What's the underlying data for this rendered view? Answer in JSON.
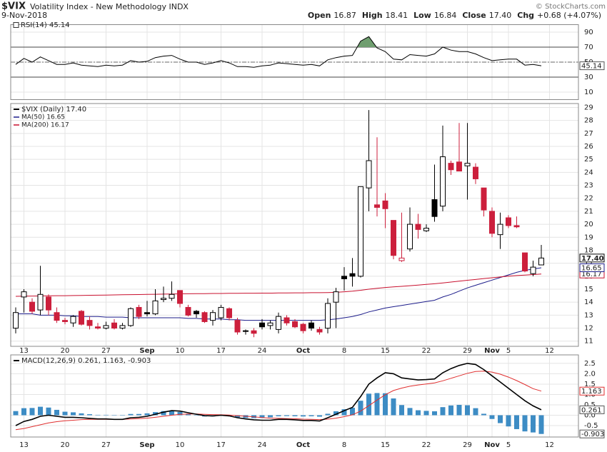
{
  "header": {
    "symbol": "$VIX",
    "name": "Volatility Index - New Methodology  INDX",
    "date": "9-Nov-2018",
    "credit": "© StockCharts.com",
    "quote": [
      {
        "label": "Open",
        "value": "16.87"
      },
      {
        "label": "High",
        "value": "18.41"
      },
      {
        "label": "Low",
        "value": "16.84"
      },
      {
        "label": "Close",
        "value": "17.40"
      },
      {
        "label": "Chg",
        "value": "+0.68 (+4.07%)"
      }
    ]
  },
  "chart_data": [
    {
      "type": "line",
      "legend": "RSI(14) 45.14",
      "ylim": [
        0,
        100
      ],
      "yticks": [
        10,
        30,
        50,
        70,
        90
      ],
      "overbought": 70,
      "oversold": 30,
      "midline": 50,
      "fill_color": "#6f9e6f",
      "series": [
        {
          "color": "#000000",
          "last_label": "45.14",
          "values": [
            47,
            55,
            50,
            57,
            52,
            47,
            47,
            49,
            46,
            45,
            44,
            46,
            45,
            46,
            52,
            50,
            51,
            56,
            58,
            59,
            54,
            50,
            50,
            47,
            49,
            52,
            49,
            44,
            44,
            43,
            45,
            46,
            49,
            48,
            47,
            46,
            47,
            45,
            53,
            56,
            58,
            59,
            78,
            84,
            69,
            64,
            54,
            53,
            60,
            59,
            58,
            61,
            70,
            66,
            64,
            64,
            61,
            56,
            52,
            53,
            54,
            54,
            46,
            47,
            45.14,
            null
          ]
        }
      ]
    },
    {
      "type": "candlestick",
      "name": "$VIX (Daily) 17.40",
      "last_label": "17.40",
      "up_color": "#000000",
      "down_color": "#cc1f3c",
      "grid": true,
      "ylim": [
        10.6,
        29.3
      ],
      "yticks": [
        11,
        12,
        13,
        14,
        15,
        16,
        17,
        18,
        19,
        20,
        21,
        22,
        23,
        24,
        25,
        26,
        27,
        28,
        29
      ],
      "categories": [
        null,
        "13",
        null,
        null,
        null,
        null,
        "20",
        null,
        null,
        null,
        null,
        "27",
        null,
        null,
        null,
        null,
        "Sep",
        null,
        null,
        null,
        "10",
        null,
        null,
        null,
        null,
        "17",
        null,
        null,
        null,
        null,
        "24",
        null,
        null,
        null,
        null,
        "Oct",
        null,
        null,
        null,
        null,
        "8",
        null,
        null,
        null,
        null,
        "15",
        null,
        null,
        null,
        null,
        "22",
        null,
        null,
        null,
        null,
        "29",
        null,
        null,
        "Nov",
        null,
        "5",
        null,
        null,
        null,
        null,
        "12"
      ],
      "open": [
        12.0,
        14.4,
        14.0,
        13.4,
        14.4,
        13.2,
        12.6,
        12.4,
        13.3,
        12.6,
        12.1,
        12.0,
        12.4,
        12.0,
        12.2,
        13.6,
        13.2,
        13.1,
        14.2,
        14.3,
        14.9,
        13.6,
        13.3,
        13.2,
        12.6,
        12.8,
        13.5,
        12.6,
        11.8,
        11.8,
        12.4,
        12.2,
        11.9,
        12.8,
        12.5,
        12.3,
        12.4,
        11.9,
        12.0,
        14.0,
        16.0,
        16.2,
        16.0,
        22.8,
        21.5,
        21.8,
        20.3,
        17.2,
        18.1,
        20.0,
        19.5,
        21.9,
        21.4,
        24.7,
        24.8,
        24.5,
        24.4,
        22.8,
        21.0,
        19.2,
        20.5,
        19.9,
        17.8,
        16.2,
        16.87,
        null
      ],
      "high": [
        13.6,
        15.0,
        14.3,
        16.8,
        14.6,
        13.6,
        12.8,
        13.0,
        13.4,
        12.9,
        12.4,
        12.5,
        12.7,
        12.4,
        13.6,
        13.8,
        14.1,
        15.0,
        15.2,
        15.6,
        14.9,
        13.8,
        13.4,
        13.3,
        13.4,
        13.8,
        13.6,
        12.8,
        11.9,
        12.0,
        12.7,
        12.6,
        13.2,
        13.0,
        12.7,
        12.4,
        12.6,
        12.1,
        14.3,
        15.1,
        16.7,
        17.4,
        22.9,
        28.8,
        26.7,
        22.4,
        20.3,
        20.9,
        21.3,
        20.8,
        20.0,
        24.6,
        27.6,
        24.9,
        27.8,
        27.8,
        24.7,
        22.8,
        21.3,
        20.9,
        20.7,
        20.6,
        17.8,
        17.2,
        18.41,
        null
      ],
      "low": [
        11.6,
        13.2,
        13.1,
        13.0,
        13.0,
        12.4,
        12.3,
        12.1,
        12.2,
        11.9,
        11.9,
        11.9,
        11.9,
        11.9,
        12.1,
        12.7,
        12.9,
        13.0,
        14.0,
        14.1,
        13.6,
        12.9,
        12.8,
        12.4,
        12.2,
        12.6,
        12.6,
        11.5,
        11.5,
        11.3,
        11.9,
        11.9,
        11.6,
        12.2,
        12.0,
        11.6,
        11.8,
        11.5,
        11.6,
        12.0,
        14.9,
        15.2,
        15.9,
        21.0,
        20.6,
        19.7,
        17.3,
        17.1,
        17.9,
        18.9,
        19.4,
        20.2,
        21.0,
        23.8,
        24.1,
        21.9,
        23.1,
        20.6,
        19.0,
        18.1,
        19.7,
        19.7,
        16.3,
        16.0,
        16.84,
        null
      ],
      "close": [
        13.2,
        14.8,
        13.3,
        14.6,
        13.4,
        12.6,
        12.5,
        12.9,
        12.3,
        12.2,
        12.0,
        12.2,
        12.0,
        12.2,
        13.5,
        12.9,
        13.1,
        14.1,
        14.3,
        14.6,
        13.9,
        13.0,
        13.1,
        12.5,
        13.2,
        13.6,
        12.8,
        11.7,
        11.8,
        11.6,
        12.1,
        12.4,
        12.9,
        12.4,
        12.1,
        11.8,
        12.0,
        11.7,
        13.9,
        14.8,
        15.8,
        16.0,
        22.9,
        24.9,
        21.3,
        21.2,
        17.6,
        17.4,
        20.0,
        19.6,
        19.7,
        20.6,
        25.2,
        24.2,
        24.1,
        24.7,
        23.5,
        21.1,
        19.3,
        20.0,
        19.9,
        19.8,
        16.4,
        16.7,
        17.4,
        null
      ],
      "overlays": [
        {
          "name": "MA(50) 16.65",
          "last_label": "16.65",
          "color": "#1c1c8a",
          "values": [
            13.1,
            13.1,
            13.1,
            13.0,
            13.0,
            13.0,
            12.95,
            12.95,
            12.9,
            12.9,
            12.9,
            12.85,
            12.85,
            12.85,
            12.8,
            12.8,
            12.8,
            12.8,
            12.8,
            12.8,
            12.8,
            12.75,
            12.75,
            12.7,
            12.7,
            12.7,
            12.65,
            12.65,
            12.6,
            12.6,
            12.6,
            12.6,
            12.6,
            12.6,
            12.6,
            12.6,
            12.6,
            12.6,
            12.65,
            12.7,
            12.8,
            12.9,
            13.05,
            13.25,
            13.4,
            13.55,
            13.65,
            13.75,
            13.85,
            13.95,
            14.05,
            14.15,
            14.4,
            14.6,
            14.85,
            15.1,
            15.3,
            15.5,
            15.7,
            15.9,
            16.1,
            16.3,
            16.45,
            16.55,
            16.65,
            null
          ]
        },
        {
          "name": "MA(200) 16.17",
          "last_label": "16.17",
          "color": "#c8102e",
          "values": [
            14.45,
            14.46,
            14.47,
            14.48,
            14.49,
            14.5,
            14.5,
            14.51,
            14.52,
            14.53,
            14.54,
            14.55,
            14.56,
            14.57,
            14.58,
            14.59,
            14.6,
            14.61,
            14.62,
            14.63,
            14.64,
            14.65,
            14.66,
            14.66,
            14.67,
            14.67,
            14.68,
            14.68,
            14.69,
            14.69,
            14.7,
            14.7,
            14.71,
            14.71,
            14.72,
            14.72,
            14.73,
            14.73,
            14.74,
            14.76,
            14.8,
            14.85,
            14.92,
            15.0,
            15.07,
            15.13,
            15.18,
            15.22,
            15.27,
            15.32,
            15.37,
            15.42,
            15.48,
            15.55,
            15.62,
            15.69,
            15.75,
            15.82,
            15.88,
            15.94,
            16.0,
            16.05,
            16.09,
            16.13,
            16.17,
            null
          ]
        }
      ]
    },
    {
      "type": "macd",
      "legend": "MACD(12,26,9) 0.261, 1.163, -0.903",
      "ylim": [
        -1.05,
        2.91
      ],
      "yticks": [
        2.5,
        {
          "value": 2,
          "label": "2.0"
        },
        1.5,
        {
          "value": 1,
          "label": "1.0"
        },
        0.5,
        {
          "value": 0,
          "label": "0.0"
        },
        -0.5
      ],
      "macd": {
        "color": "#000000",
        "last_label": "0.261",
        "values": [
          -0.5,
          -0.3,
          -0.2,
          -0.05,
          0.0,
          -0.05,
          -0.1,
          -0.1,
          -0.12,
          -0.15,
          -0.18,
          -0.18,
          -0.2,
          -0.2,
          -0.12,
          -0.1,
          -0.05,
          0.05,
          0.15,
          0.22,
          0.2,
          0.12,
          0.05,
          -0.02,
          -0.03,
          0.0,
          -0.03,
          -0.12,
          -0.18,
          -0.22,
          -0.24,
          -0.24,
          -0.2,
          -0.2,
          -0.22,
          -0.25,
          -0.25,
          -0.28,
          -0.12,
          0.05,
          0.22,
          0.38,
          0.9,
          1.5,
          1.8,
          2.05,
          2.0,
          1.8,
          1.75,
          1.7,
          1.72,
          1.75,
          2.05,
          2.25,
          2.4,
          2.5,
          2.45,
          2.2,
          1.9,
          1.6,
          1.3,
          1.0,
          0.7,
          0.45,
          0.261,
          null
        ]
      },
      "signal": {
        "color": "#e02f2f",
        "last_label": "1.163",
        "values": [
          -0.7,
          -0.64,
          -0.55,
          -0.46,
          -0.37,
          -0.31,
          -0.27,
          -0.24,
          -0.21,
          -0.2,
          -0.2,
          -0.2,
          -0.2,
          -0.2,
          -0.18,
          -0.16,
          -0.14,
          -0.1,
          -0.05,
          0.0,
          0.04,
          0.06,
          0.06,
          0.04,
          0.03,
          0.02,
          0.01,
          -0.02,
          -0.05,
          -0.08,
          -0.11,
          -0.14,
          -0.15,
          -0.16,
          -0.17,
          -0.19,
          -0.2,
          -0.21,
          -0.19,
          -0.14,
          -0.07,
          0.02,
          0.2,
          0.46,
          0.73,
          0.99,
          1.19,
          1.31,
          1.4,
          1.46,
          1.51,
          1.56,
          1.66,
          1.78,
          1.9,
          2.02,
          2.11,
          2.13,
          2.08,
          1.98,
          1.84,
          1.67,
          1.48,
          1.28,
          1.163,
          null
        ]
      },
      "histogram": {
        "color": "#3d8cc4",
        "last_label": "-0.903",
        "values": [
          0.2,
          0.34,
          0.35,
          0.41,
          0.37,
          0.26,
          0.17,
          0.14,
          0.09,
          0.05,
          0.02,
          0.02,
          0,
          0,
          0.06,
          0.06,
          0.09,
          0.15,
          0.2,
          0.22,
          0.16,
          0.06,
          -0.01,
          -0.06,
          -0.06,
          -0.02,
          -0.04,
          -0.1,
          -0.13,
          -0.14,
          -0.13,
          -0.1,
          -0.05,
          -0.04,
          -0.05,
          -0.06,
          -0.05,
          -0.07,
          0.07,
          0.19,
          0.29,
          0.36,
          0.7,
          1.04,
          1.07,
          1.06,
          0.81,
          0.49,
          0.35,
          0.24,
          0.21,
          0.19,
          0.39,
          0.47,
          0.5,
          0.48,
          0.34,
          0.07,
          -0.18,
          -0.38,
          -0.54,
          -0.67,
          -0.78,
          -0.83,
          -0.903,
          null
        ]
      }
    }
  ]
}
